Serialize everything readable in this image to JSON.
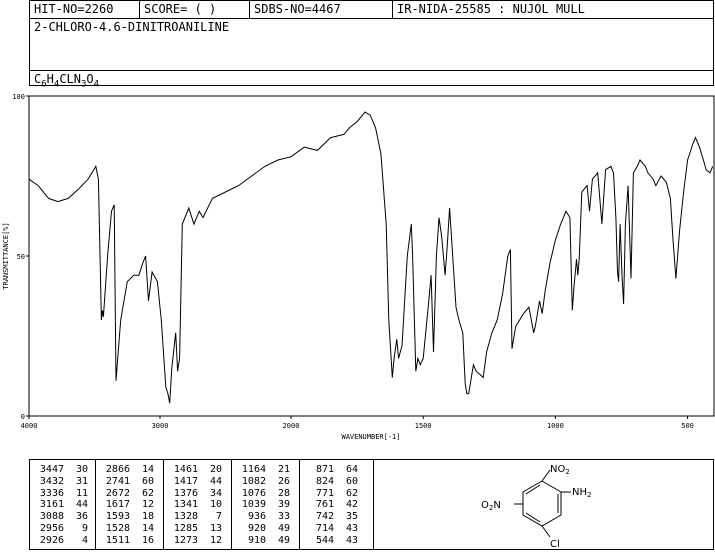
{
  "header": {
    "hit_no": "HIT-NO=2260",
    "score": "SCORE=  (  )",
    "sdbs_no": "SDBS-NO=4467",
    "method": "IR-NIDA-25585 : NUJOL MULL",
    "compound": "2-CHLORO-4.6-DINITROANILINE",
    "formula_parts": [
      "C",
      "6",
      "H",
      "4",
      "CLN",
      "3",
      "O",
      "4"
    ]
  },
  "chart_data": {
    "type": "line",
    "xlabel": "WAVENUMBER[-1]",
    "ylabel": "TRANSMITTANCE[%]",
    "xlim": [
      4000,
      400
    ],
    "ylim": [
      0,
      100
    ],
    "x_ticks": [
      4000,
      3000,
      2000,
      1500,
      1000,
      500
    ],
    "y_ticks": [
      0,
      50,
      100
    ],
    "series": [
      {
        "points": [
          [
            4000,
            74
          ],
          [
            3930,
            72
          ],
          [
            3850,
            68
          ],
          [
            3780,
            67
          ],
          [
            3700,
            68
          ],
          [
            3620,
            71
          ],
          [
            3550,
            74
          ],
          [
            3490,
            78
          ],
          [
            3470,
            74
          ],
          [
            3447,
            30
          ],
          [
            3440,
            33
          ],
          [
            3432,
            31
          ],
          [
            3400,
            50
          ],
          [
            3370,
            64
          ],
          [
            3350,
            66
          ],
          [
            3336,
            11
          ],
          [
            3300,
            30
          ],
          [
            3250,
            42
          ],
          [
            3200,
            44
          ],
          [
            3161,
            44
          ],
          [
            3130,
            48
          ],
          [
            3110,
            50
          ],
          [
            3088,
            36
          ],
          [
            3060,
            45
          ],
          [
            3020,
            42
          ],
          [
            2990,
            30
          ],
          [
            2956,
            9
          ],
          [
            2940,
            7
          ],
          [
            2926,
            4
          ],
          [
            2910,
            15
          ],
          [
            2880,
            26
          ],
          [
            2866,
            14
          ],
          [
            2850,
            18
          ],
          [
            2830,
            60
          ],
          [
            2780,
            65
          ],
          [
            2741,
            60
          ],
          [
            2700,
            64
          ],
          [
            2672,
            62
          ],
          [
            2600,
            68
          ],
          [
            2500,
            70
          ],
          [
            2400,
            72
          ],
          [
            2300,
            75
          ],
          [
            2200,
            78
          ],
          [
            2100,
            80
          ],
          [
            2000,
            81
          ],
          [
            1950,
            84
          ],
          [
            1900,
            83
          ],
          [
            1850,
            87
          ],
          [
            1800,
            88
          ],
          [
            1780,
            90
          ],
          [
            1750,
            92
          ],
          [
            1720,
            95
          ],
          [
            1700,
            94
          ],
          [
            1680,
            90
          ],
          [
            1660,
            82
          ],
          [
            1640,
            60
          ],
          [
            1630,
            30
          ],
          [
            1617,
            12
          ],
          [
            1610,
            18
          ],
          [
            1600,
            24
          ],
          [
            1593,
            18
          ],
          [
            1580,
            22
          ],
          [
            1560,
            50
          ],
          [
            1545,
            60
          ],
          [
            1540,
            50
          ],
          [
            1528,
            14
          ],
          [
            1520,
            18
          ],
          [
            1511,
            16
          ],
          [
            1500,
            18
          ],
          [
            1480,
            35
          ],
          [
            1470,
            44
          ],
          [
            1461,
            20
          ],
          [
            1450,
            50
          ],
          [
            1440,
            62
          ],
          [
            1430,
            56
          ],
          [
            1417,
            44
          ],
          [
            1410,
            52
          ],
          [
            1400,
            65
          ],
          [
            1390,
            52
          ],
          [
            1376,
            34
          ],
          [
            1365,
            30
          ],
          [
            1350,
            26
          ],
          [
            1341,
            10
          ],
          [
            1335,
            7
          ],
          [
            1328,
            7
          ],
          [
            1310,
            16
          ],
          [
            1300,
            14
          ],
          [
            1285,
            13
          ],
          [
            1273,
            12
          ],
          [
            1260,
            20
          ],
          [
            1240,
            26
          ],
          [
            1220,
            30
          ],
          [
            1200,
            38
          ],
          [
            1180,
            50
          ],
          [
            1170,
            52
          ],
          [
            1164,
            21
          ],
          [
            1150,
            28
          ],
          [
            1120,
            32
          ],
          [
            1100,
            34
          ],
          [
            1082,
            26
          ],
          [
            1076,
            28
          ],
          [
            1060,
            36
          ],
          [
            1050,
            32
          ],
          [
            1039,
            39
          ],
          [
            1020,
            48
          ],
          [
            1000,
            55
          ],
          [
            980,
            60
          ],
          [
            960,
            64
          ],
          [
            945,
            62
          ],
          [
            936,
            33
          ],
          [
            930,
            40
          ],
          [
            920,
            49
          ],
          [
            915,
            44
          ],
          [
            910,
            49
          ],
          [
            900,
            70
          ],
          [
            880,
            72
          ],
          [
            871,
            64
          ],
          [
            860,
            74
          ],
          [
            840,
            76
          ],
          [
            824,
            60
          ],
          [
            810,
            77
          ],
          [
            790,
            78
          ],
          [
            780,
            76
          ],
          [
            771,
            62
          ],
          [
            765,
            45
          ],
          [
            761,
            42
          ],
          [
            755,
            60
          ],
          [
            748,
            44
          ],
          [
            742,
            35
          ],
          [
            735,
            60
          ],
          [
            725,
            72
          ],
          [
            714,
            43
          ],
          [
            705,
            76
          ],
          [
            690,
            78
          ],
          [
            680,
            80
          ],
          [
            660,
            78
          ],
          [
            650,
            76
          ],
          [
            630,
            74
          ],
          [
            620,
            72
          ],
          [
            600,
            75
          ],
          [
            580,
            73
          ],
          [
            565,
            68
          ],
          [
            555,
            55
          ],
          [
            544,
            43
          ],
          [
            530,
            58
          ],
          [
            515,
            70
          ],
          [
            500,
            80
          ],
          [
            480,
            85
          ],
          [
            470,
            87
          ],
          [
            455,
            84
          ],
          [
            440,
            80
          ],
          [
            430,
            77
          ],
          [
            415,
            76
          ],
          [
            405,
            78
          ]
        ]
      }
    ]
  },
  "peaks": {
    "columns": [
      [
        [
          "3447",
          "30"
        ],
        [
          "3432",
          "31"
        ],
        [
          "3336",
          "11"
        ],
        [
          "3161",
          "44"
        ],
        [
          "3088",
          "36"
        ],
        [
          "2956",
          "9"
        ],
        [
          "2926",
          "4"
        ]
      ],
      [
        [
          "2866",
          "14"
        ],
        [
          "2741",
          "60"
        ],
        [
          "2672",
          "62"
        ],
        [
          "1617",
          "12"
        ],
        [
          "1593",
          "18"
        ],
        [
          "1528",
          "14"
        ],
        [
          "1511",
          "16"
        ]
      ],
      [
        [
          "1461",
          "20"
        ],
        [
          "1417",
          "44"
        ],
        [
          "1376",
          "34"
        ],
        [
          "1341",
          "10"
        ],
        [
          "1328",
          "7"
        ],
        [
          "1285",
          "13"
        ],
        [
          "1273",
          "12"
        ]
      ],
      [
        [
          "1164",
          "21"
        ],
        [
          "1082",
          "26"
        ],
        [
          "1076",
          "28"
        ],
        [
          "1039",
          "39"
        ],
        [
          "936",
          "33"
        ],
        [
          "920",
          "49"
        ],
        [
          "910",
          "49"
        ]
      ],
      [
        [
          "871",
          "64"
        ],
        [
          "824",
          "60"
        ],
        [
          "771",
          "62"
        ],
        [
          "761",
          "42"
        ],
        [
          "742",
          "35"
        ],
        [
          "714",
          "43"
        ],
        [
          "544",
          "43"
        ]
      ]
    ]
  },
  "structure": {
    "labels": {
      "no2_top": "NO",
      "no2_top_sub": "2",
      "no2_left": "O",
      "no2_left_sub": "2",
      "no2_left_n": "N",
      "nh2": "NH",
      "nh2_sub": "2",
      "cl": "Cl"
    }
  }
}
